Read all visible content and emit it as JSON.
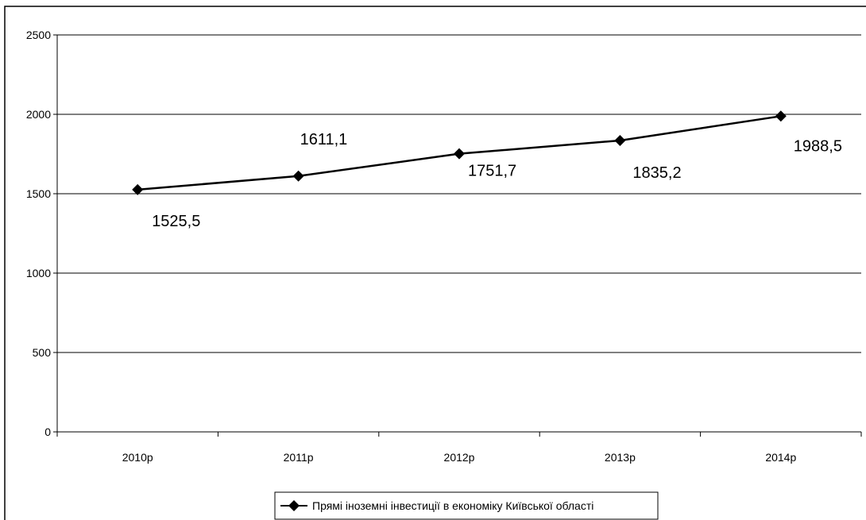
{
  "chart_data": {
    "type": "line",
    "title": "",
    "xlabel": "",
    "ylabel": "",
    "categories": [
      "2010р",
      "2011р",
      "2012р",
      "2013р",
      "2014р"
    ],
    "series": [
      {
        "name": "Прямі іноземні інвестиції в економіку Київської області",
        "values": [
          1525.5,
          1611.1,
          1751.7,
          1835.2,
          1988.5
        ],
        "labels": [
          "1525,5",
          "1611,1",
          "1751,7",
          "1835,2",
          "1988,5"
        ],
        "color": "#000000",
        "marker": "diamond"
      }
    ],
    "ylim": [
      0,
      2500
    ],
    "yticks": [
      0,
      500,
      1000,
      1500,
      2000,
      2500
    ],
    "grid": "horizontal",
    "legend_position": "bottom-center"
  }
}
